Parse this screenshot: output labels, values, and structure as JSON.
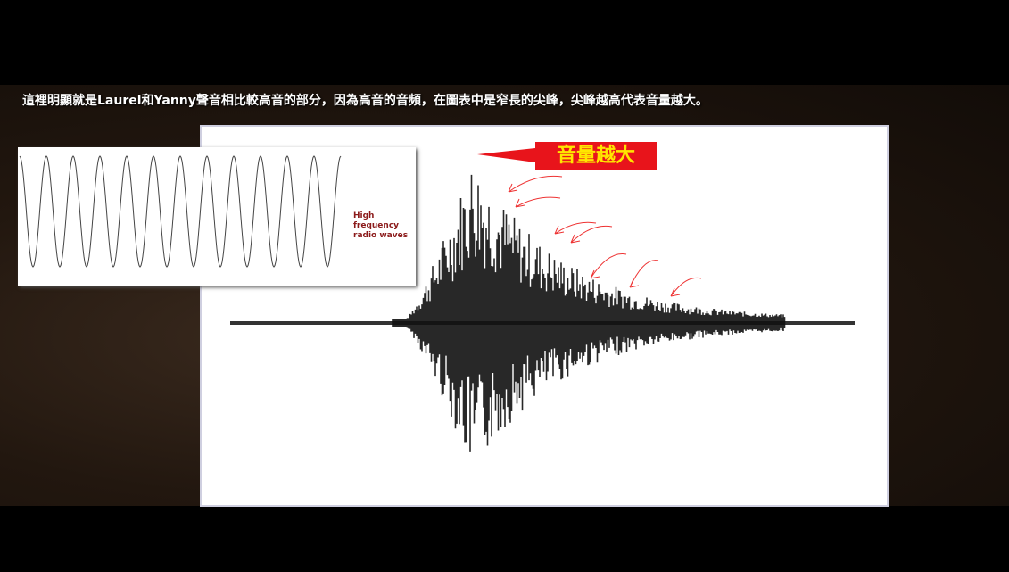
{
  "caption": "這裡明顯就是Laurel和Yanny聲音相比較高音的部分，因為高音的音頻，在圖表中是窄長的尖峰，尖峰越高代表音量越大。",
  "callout": "音量越大",
  "inset_label": [
    "High",
    "frequency",
    "radio waves"
  ]
}
